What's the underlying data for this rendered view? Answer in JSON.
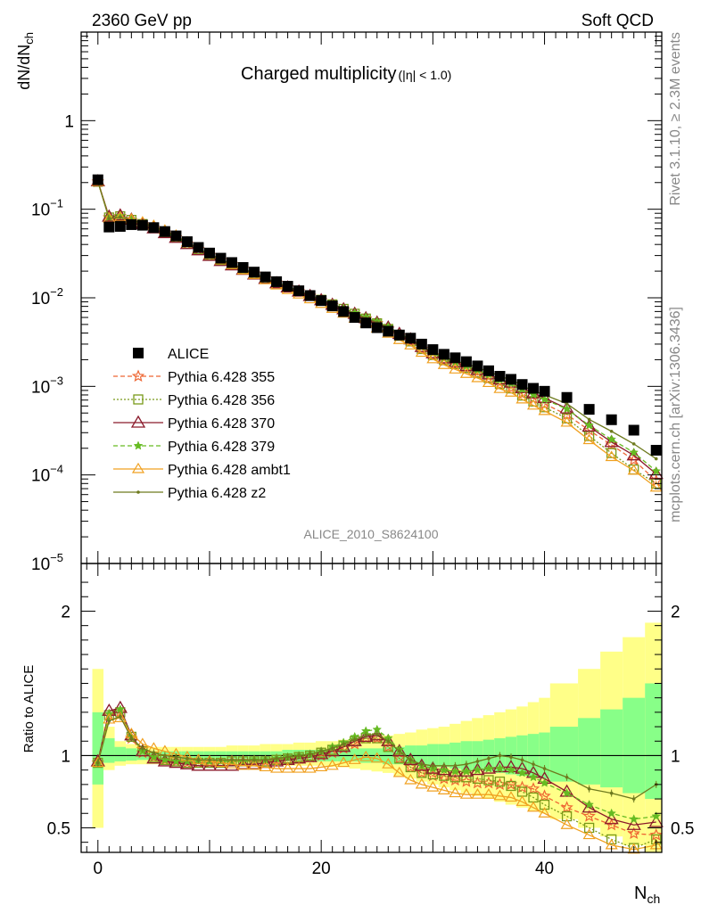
{
  "header": {
    "left": "2360 GeV pp",
    "right": "Soft QCD"
  },
  "side": {
    "rivet": "Rivet 3.1.10, ≥ 2.3M events",
    "mcplots": "mcplots.cern.ch [arXiv:1306.3436]"
  },
  "analysis_id": "ALICE_2010_S8624100",
  "chart_data": [
    {
      "type": "scatter",
      "title": "Charged multiplicity",
      "title_sub": "(|η| < 1.0)",
      "ylabel_main": "dN/dN",
      "ylabel_sub": "ch",
      "xlabel_main": "N",
      "xlabel_sub": "ch",
      "xlim": [
        -1.5,
        50.5
      ],
      "ylim": [
        1e-05,
        10
      ],
      "log_y": true,
      "y_ticks": [
        {
          "value": 1,
          "label": "1"
        },
        {
          "value": 0.1,
          "label": "10",
          "exp": "−1"
        },
        {
          "value": 0.01,
          "label": "10",
          "exp": "−2"
        },
        {
          "value": 0.001,
          "label": "10",
          "exp": "−3"
        },
        {
          "value": 0.0001,
          "label": "10",
          "exp": "−4"
        },
        {
          "value": 1e-05,
          "label": "10",
          "exp": "−5"
        }
      ],
      "legend_position": "middle-left",
      "colors": {
        "ALICE": "#000000",
        "355": "#ee6633",
        "356": "#7a9a1a",
        "370": "#8b1a2b",
        "379": "#66bb22",
        "ambt1": "#f0a020",
        "z2": "#6e7a1e"
      },
      "legend": [
        {
          "key": "ALICE",
          "label": "ALICE"
        },
        {
          "key": "355",
          "label": "Pythia 6.428 355"
        },
        {
          "key": "356",
          "label": "Pythia 6.428 356"
        },
        {
          "key": "370",
          "label": "Pythia 6.428 370"
        },
        {
          "key": "379",
          "label": "Pythia 6.428 379"
        },
        {
          "key": "ambt1",
          "label": "Pythia 6.428 ambt1"
        },
        {
          "key": "z2",
          "label": "Pythia 6.428 z2"
        }
      ],
      "alice_x": [
        0,
        1,
        2,
        3,
        4,
        5,
        6,
        7,
        8,
        9,
        10,
        11,
        12,
        13,
        14,
        15,
        16,
        17,
        18,
        19,
        20,
        21,
        22,
        23,
        24,
        25,
        26,
        27,
        28,
        29,
        30,
        31,
        32,
        33,
        34,
        35,
        36,
        37,
        38,
        39,
        40,
        42,
        44,
        46,
        48,
        50
      ],
      "alice_y": [
        0.215,
        0.063,
        0.064,
        0.067,
        0.066,
        0.062,
        0.056,
        0.05,
        0.043,
        0.037,
        0.032,
        0.028,
        0.025,
        0.022,
        0.0195,
        0.0172,
        0.0152,
        0.0135,
        0.012,
        0.0106,
        0.0093,
        0.0081,
        0.007,
        0.006,
        0.0052,
        0.0046,
        0.0042,
        0.0038,
        0.0035,
        0.003,
        0.0026,
        0.0023,
        0.0021,
        0.0019,
        0.0017,
        0.0015,
        0.0013,
        0.0012,
        0.00105,
        0.00095,
        0.00088,
        0.00075,
        0.00055,
        0.00042,
        0.00032,
        0.00019
      ]
    },
    {
      "type": "line",
      "ylabel": "Ratio to ALICE",
      "xlim": [
        -1.5,
        50.5
      ],
      "ylim": [
        0.33,
        2.33
      ],
      "x_ticks": [
        0,
        20,
        40
      ],
      "y_ticks": [
        0.5,
        1,
        2
      ],
      "reference_line": 1,
      "bands": {
        "x_edges": [
          -0.5,
          0.5,
          1.5,
          2.5,
          3.5,
          4.5,
          5.5,
          6.5,
          7.5,
          8.5,
          9.5,
          10.5,
          11.5,
          12.5,
          13.5,
          14.5,
          15.5,
          16.5,
          17.5,
          18.5,
          19.5,
          20.5,
          21.5,
          22.5,
          23.5,
          24.5,
          25.5,
          26.5,
          27.5,
          28.5,
          29.5,
          30.5,
          31.5,
          32.5,
          33.5,
          34.5,
          35.5,
          36.5,
          37.5,
          38.5,
          39.5,
          40.5,
          43,
          45,
          47,
          49,
          51
        ],
        "inner_lo": [
          0.8,
          0.95,
          0.96,
          0.965,
          0.97,
          0.97,
          0.97,
          0.97,
          0.97,
          0.97,
          0.97,
          0.97,
          0.97,
          0.97,
          0.97,
          0.97,
          0.97,
          0.96,
          0.96,
          0.96,
          0.96,
          0.96,
          0.96,
          0.96,
          0.95,
          0.95,
          0.94,
          0.94,
          0.93,
          0.93,
          0.92,
          0.92,
          0.91,
          0.9,
          0.9,
          0.89,
          0.88,
          0.87,
          0.86,
          0.85,
          0.84,
          0.82,
          0.8,
          0.78,
          0.74,
          0.7
        ],
        "inner_hi": [
          1.3,
          1.12,
          1.06,
          1.05,
          1.04,
          1.03,
          1.03,
          1.03,
          1.03,
          1.03,
          1.03,
          1.03,
          1.03,
          1.03,
          1.03,
          1.03,
          1.03,
          1.04,
          1.04,
          1.04,
          1.04,
          1.04,
          1.04,
          1.05,
          1.05,
          1.05,
          1.06,
          1.06,
          1.07,
          1.07,
          1.08,
          1.08,
          1.09,
          1.1,
          1.1,
          1.11,
          1.12,
          1.13,
          1.14,
          1.15,
          1.16,
          1.2,
          1.26,
          1.32,
          1.4,
          1.5
        ],
        "outer_lo": [
          0.5,
          0.9,
          0.93,
          0.94,
          0.94,
          0.94,
          0.94,
          0.94,
          0.94,
          0.94,
          0.94,
          0.94,
          0.94,
          0.94,
          0.94,
          0.94,
          0.94,
          0.93,
          0.93,
          0.93,
          0.93,
          0.92,
          0.92,
          0.91,
          0.9,
          0.89,
          0.88,
          0.86,
          0.84,
          0.82,
          0.8,
          0.78,
          0.76,
          0.74,
          0.72,
          0.7,
          0.68,
          0.66,
          0.64,
          0.62,
          0.6,
          0.56,
          0.5,
          0.44,
          0.38,
          0.32
        ],
        "outer_hi": [
          1.6,
          1.2,
          1.1,
          1.08,
          1.07,
          1.06,
          1.06,
          1.06,
          1.06,
          1.06,
          1.06,
          1.06,
          1.07,
          1.07,
          1.07,
          1.08,
          1.08,
          1.08,
          1.09,
          1.09,
          1.1,
          1.1,
          1.11,
          1.12,
          1.12,
          1.13,
          1.14,
          1.15,
          1.16,
          1.18,
          1.19,
          1.2,
          1.22,
          1.24,
          1.26,
          1.28,
          1.3,
          1.32,
          1.34,
          1.37,
          1.4,
          1.5,
          1.6,
          1.72,
          1.82,
          1.92
        ]
      },
      "series": [
        {
          "key": "355",
          "x": [
            0,
            1,
            2,
            3,
            4,
            5,
            6,
            7,
            8,
            9,
            10,
            11,
            12,
            13,
            14,
            15,
            16,
            17,
            18,
            19,
            20,
            21,
            22,
            23,
            24,
            25,
            26,
            27,
            28,
            29,
            30,
            31,
            32,
            33,
            34,
            35,
            36,
            37,
            38,
            39,
            40,
            42,
            44,
            46,
            48,
            50
          ],
          "values": [
            0.95,
            1.28,
            1.3,
            1.12,
            1.02,
            0.99,
            0.97,
            0.96,
            0.95,
            0.95,
            0.95,
            0.95,
            0.96,
            0.96,
            0.96,
            0.96,
            0.97,
            0.97,
            0.98,
            0.99,
            1.0,
            1.02,
            1.05,
            1.08,
            1.12,
            1.12,
            1.06,
            0.98,
            0.92,
            0.88,
            0.86,
            0.84,
            0.83,
            0.82,
            0.81,
            0.81,
            0.8,
            0.8,
            0.78,
            0.77,
            0.72,
            0.64,
            0.58,
            0.52,
            0.46,
            0.45
          ]
        },
        {
          "key": "356",
          "x": [
            0,
            1,
            2,
            3,
            4,
            5,
            6,
            7,
            8,
            9,
            10,
            11,
            12,
            13,
            14,
            15,
            16,
            17,
            18,
            19,
            20,
            21,
            22,
            23,
            24,
            25,
            26,
            27,
            28,
            29,
            30,
            31,
            32,
            33,
            34,
            35,
            36,
            37,
            38,
            39,
            40,
            42,
            44,
            46,
            48,
            50
          ],
          "values": [
            0.95,
            1.28,
            1.3,
            1.13,
            1.03,
            0.99,
            0.97,
            0.96,
            0.95,
            0.95,
            0.95,
            0.95,
            0.96,
            0.96,
            0.96,
            0.96,
            0.97,
            0.98,
            0.99,
            1.0,
            1.02,
            1.04,
            1.07,
            1.1,
            1.12,
            1.12,
            1.06,
            0.98,
            0.92,
            0.88,
            0.87,
            0.86,
            0.85,
            0.85,
            0.84,
            0.83,
            0.82,
            0.79,
            0.75,
            0.71,
            0.66,
            0.58,
            0.5,
            0.42,
            0.36,
            0.42
          ]
        },
        {
          "key": "370",
          "x": [
            0,
            1,
            2,
            3,
            4,
            5,
            6,
            7,
            8,
            9,
            10,
            11,
            12,
            13,
            14,
            15,
            16,
            17,
            18,
            19,
            20,
            21,
            22,
            23,
            24,
            25,
            26,
            27,
            28,
            29,
            30,
            31,
            32,
            33,
            34,
            35,
            36,
            37,
            38,
            39,
            40,
            42,
            44,
            46,
            48,
            50
          ],
          "values": [
            0.96,
            1.31,
            1.33,
            1.14,
            1.03,
            0.98,
            0.96,
            0.95,
            0.94,
            0.93,
            0.93,
            0.93,
            0.93,
            0.94,
            0.94,
            0.95,
            0.96,
            0.97,
            0.98,
            0.99,
            1.01,
            1.03,
            1.06,
            1.1,
            1.13,
            1.14,
            1.1,
            1.03,
            0.97,
            0.93,
            0.91,
            0.9,
            0.89,
            0.89,
            0.9,
            0.91,
            0.92,
            0.92,
            0.91,
            0.88,
            0.84,
            0.75,
            0.64,
            0.56,
            0.52,
            0.54
          ]
        },
        {
          "key": "379",
          "x": [
            0,
            1,
            2,
            3,
            4,
            5,
            6,
            7,
            8,
            9,
            10,
            11,
            12,
            13,
            14,
            15,
            16,
            17,
            18,
            19,
            20,
            21,
            22,
            23,
            24,
            25,
            26,
            27,
            28,
            29,
            30,
            31,
            32,
            33,
            34,
            35,
            36,
            37,
            38,
            39,
            40,
            42,
            44,
            46,
            48,
            50
          ],
          "values": [
            0.95,
            1.29,
            1.32,
            1.13,
            1.03,
            0.99,
            0.97,
            0.96,
            0.96,
            0.96,
            0.96,
            0.96,
            0.96,
            0.96,
            0.97,
            0.97,
            0.98,
            0.99,
            1.0,
            1.01,
            1.03,
            1.06,
            1.09,
            1.13,
            1.17,
            1.18,
            1.12,
            1.04,
            0.97,
            0.93,
            0.91,
            0.9,
            0.89,
            0.89,
            0.9,
            0.91,
            0.91,
            0.9,
            0.88,
            0.85,
            0.81,
            0.74,
            0.66,
            0.6,
            0.56,
            0.58
          ]
        },
        {
          "key": "ambt1",
          "x": [
            0,
            1,
            2,
            3,
            4,
            5,
            6,
            7,
            8,
            9,
            10,
            11,
            12,
            13,
            14,
            15,
            16,
            17,
            18,
            19,
            20,
            21,
            22,
            23,
            24,
            25,
            26,
            27,
            28,
            29,
            30,
            31,
            32,
            33,
            34,
            35,
            36,
            37,
            38,
            39,
            40,
            42,
            44,
            46,
            48,
            50
          ],
          "values": [
            0.95,
            1.25,
            1.26,
            1.15,
            1.08,
            1.05,
            1.03,
            1.01,
            0.99,
            0.97,
            0.96,
            0.95,
            0.94,
            0.93,
            0.93,
            0.92,
            0.91,
            0.91,
            0.91,
            0.91,
            0.92,
            0.93,
            0.95,
            0.97,
            0.99,
            0.98,
            0.94,
            0.88,
            0.83,
            0.8,
            0.78,
            0.76,
            0.74,
            0.73,
            0.73,
            0.73,
            0.72,
            0.71,
            0.68,
            0.64,
            0.6,
            0.52,
            0.45,
            0.38,
            0.35,
            0.38
          ]
        },
        {
          "key": "z2",
          "x": [
            0,
            1,
            2,
            3,
            4,
            5,
            6,
            7,
            8,
            9,
            10,
            11,
            12,
            13,
            14,
            15,
            16,
            17,
            18,
            19,
            20,
            21,
            22,
            23,
            24,
            25,
            26,
            27,
            28,
            29,
            30,
            31,
            32,
            33,
            34,
            35,
            36,
            37,
            38,
            39,
            40,
            42,
            44,
            46,
            48,
            50
          ],
          "values": [
            0.95,
            1.24,
            1.27,
            1.12,
            1.05,
            1.02,
            1.0,
            0.99,
            0.98,
            0.97,
            0.97,
            0.97,
            0.97,
            0.97,
            0.97,
            0.97,
            0.98,
            0.99,
            1.0,
            1.01,
            1.03,
            1.05,
            1.08,
            1.11,
            1.14,
            1.15,
            1.1,
            1.03,
            0.97,
            0.94,
            0.93,
            0.93,
            0.93,
            0.94,
            0.96,
            0.98,
            1.0,
            0.99,
            0.97,
            0.94,
            0.91,
            0.85,
            0.77,
            0.74,
            0.7,
            0.8
          ]
        }
      ]
    }
  ]
}
